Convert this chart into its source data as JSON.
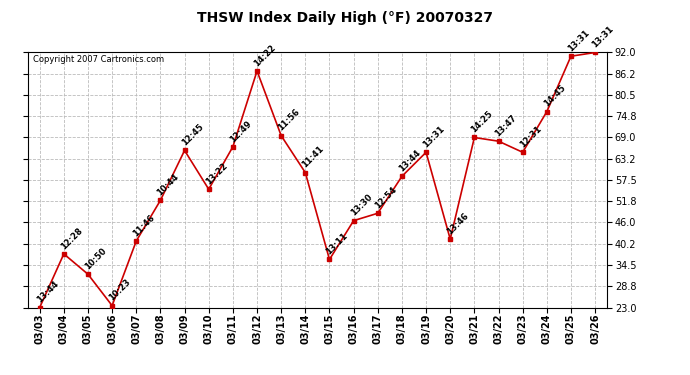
{
  "title": "THSW Index Daily High (°F) 20070327",
  "copyright": "Copyright 2007 Cartronics.com",
  "dates": [
    "03/03",
    "03/04",
    "03/05",
    "03/06",
    "03/07",
    "03/08",
    "03/09",
    "03/10",
    "03/11",
    "03/12",
    "03/13",
    "03/14",
    "03/15",
    "03/16",
    "03/17",
    "03/18",
    "03/19",
    "03/20",
    "03/21",
    "03/22",
    "03/23",
    "03/24",
    "03/25",
    "03/26"
  ],
  "values": [
    23.0,
    37.5,
    32.0,
    23.5,
    41.0,
    52.0,
    65.5,
    55.0,
    66.5,
    87.0,
    69.5,
    59.5,
    36.0,
    46.5,
    48.5,
    58.5,
    65.0,
    41.5,
    69.0,
    68.0,
    65.0,
    76.0,
    91.0,
    92.0
  ],
  "times": [
    "13:44",
    "12:28",
    "10:50",
    "10:23",
    "11:46",
    "10:44",
    "12:45",
    "13:22",
    "12:49",
    "14:22",
    "11:56",
    "11:41",
    "13:11",
    "13:30",
    "12:54",
    "13:44",
    "13:31",
    "13:46",
    "14:25",
    "13:47",
    "12:31",
    "14:45",
    "13:31",
    "13:31"
  ],
  "ylim": [
    23.0,
    92.0
  ],
  "yticks": [
    23.0,
    28.8,
    34.5,
    40.2,
    46.0,
    51.8,
    57.5,
    63.2,
    69.0,
    74.8,
    80.5,
    86.2,
    92.0
  ],
  "line_color": "#cc0000",
  "marker_color": "#cc0000",
  "bg_color": "#ffffff",
  "plot_bg_color": "#ffffff",
  "grid_color": "#bbbbbb",
  "title_fontsize": 10,
  "label_fontsize": 6,
  "tick_fontsize": 7,
  "copyright_fontsize": 6,
  "fig_width": 6.9,
  "fig_height": 3.75,
  "dpi": 100
}
